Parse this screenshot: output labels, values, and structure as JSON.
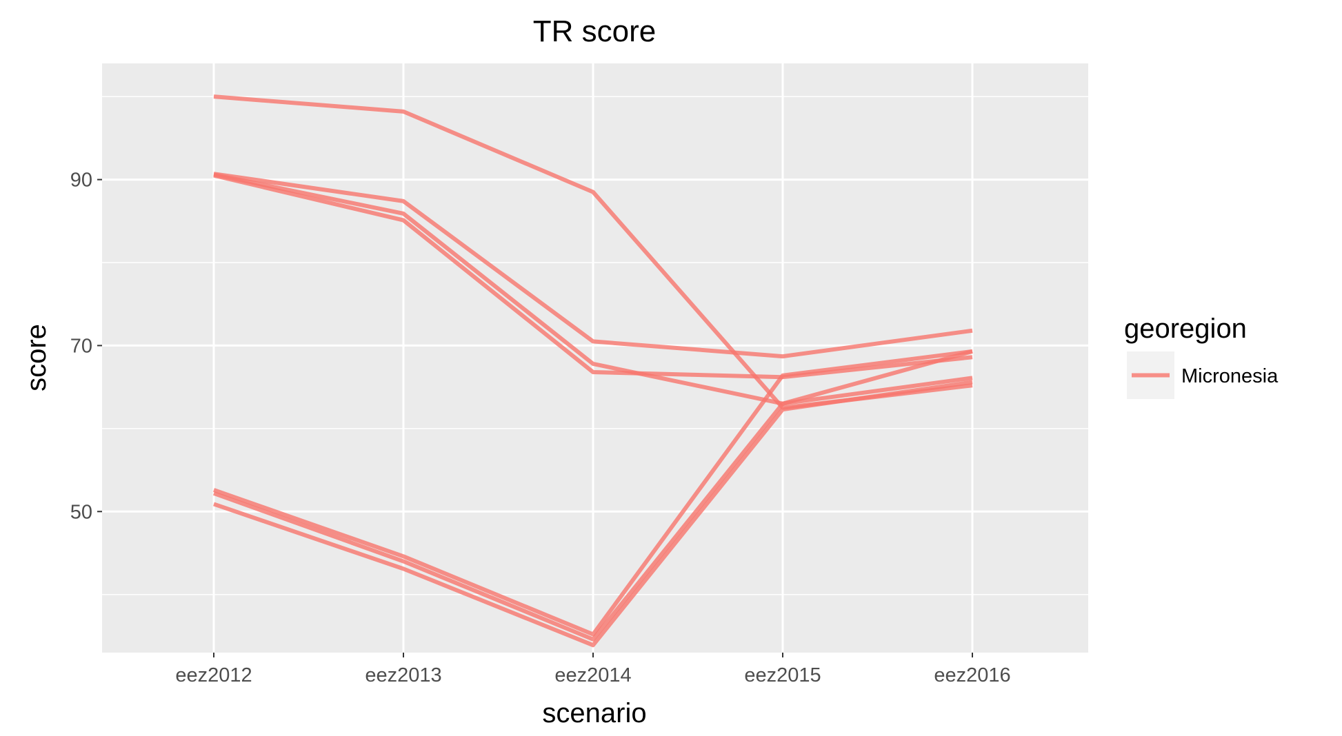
{
  "chart_data": {
    "type": "line",
    "title": "TR score",
    "xlabel": "scenario",
    "ylabel": "score",
    "categories": [
      "eez2012",
      "eez2013",
      "eez2014",
      "eez2015",
      "eez2016"
    ],
    "ylim": [
      33,
      104
    ],
    "y_ticks": [
      50,
      70,
      90
    ],
    "y_tick_labels": [
      "50",
      "70",
      "90"
    ],
    "grid": true,
    "legend": {
      "title": "georegion",
      "position": "right",
      "entries": [
        {
          "label": "Micronesia",
          "color": "#F8766D"
        }
      ]
    },
    "line_color": "#F8766D",
    "series": [
      {
        "values": [
          100.0,
          98.2,
          88.5,
          62.5,
          65.2
        ]
      },
      {
        "values": [
          90.7,
          87.4,
          70.5,
          68.7,
          71.8
        ]
      },
      {
        "values": [
          90.6,
          85.9,
          67.8,
          63.0,
          69.3
        ]
      },
      {
        "values": [
          90.5,
          85.1,
          66.8,
          66.2,
          68.6
        ]
      },
      {
        "values": [
          52.6,
          44.6,
          35.2,
          66.4,
          69.3
        ]
      },
      {
        "values": [
          52.2,
          44.0,
          34.6,
          63.0,
          66.1
        ]
      },
      {
        "values": [
          50.9,
          43.1,
          33.9,
          62.3,
          65.6
        ]
      }
    ]
  }
}
